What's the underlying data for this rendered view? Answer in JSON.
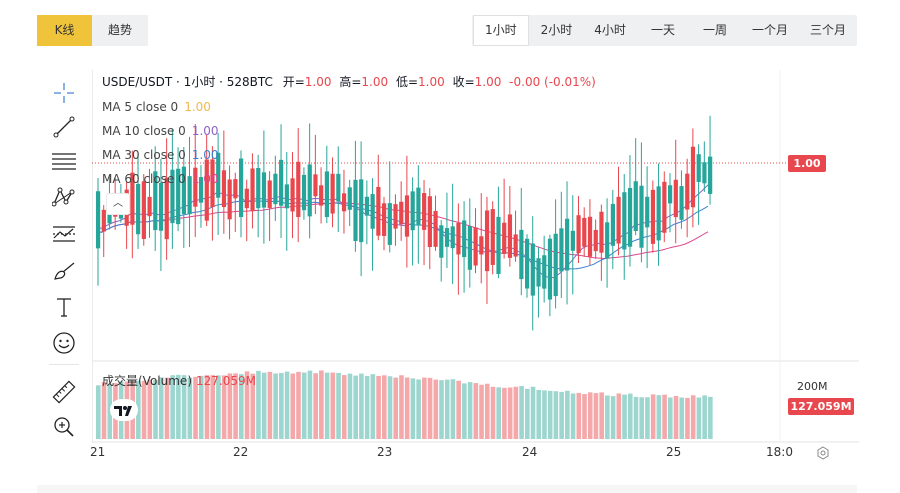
{
  "chart_tabs": {
    "kline": "K线",
    "trend": "趋势",
    "active": "kline"
  },
  "intervals": [
    "1小时",
    "2小时",
    "4小时",
    "一天",
    "一周",
    "一个月",
    "三个月"
  ],
  "active_interval": "1小时",
  "legend": {
    "symbol": "USDE/USDT · 1小时 · 528BTC",
    "open_label": "开=",
    "open": "1.00",
    "high_label": "高=",
    "high": "1.00",
    "low_label": "低=",
    "low": "1.00",
    "close_label": "收=",
    "close": "1.00",
    "change": "-0.00 (-0.01%)"
  },
  "ma_lines": [
    {
      "label": "MA 5 close 0",
      "value": "1.00",
      "color": "#f0b94d"
    },
    {
      "label": "MA 10 close 0",
      "value": "1.00",
      "color": "#8a63c9"
    },
    {
      "label": "MA 30 close 0",
      "value": "1.00",
      "color": "#3c7fcf"
    },
    {
      "label": "MA 60 close 0",
      "value": "1.00",
      "color": "#e0448b"
    }
  ],
  "volume": {
    "label": "成交量(Volume)",
    "value": "127.059M",
    "axis_label": "200M"
  },
  "price_tag": "1.00",
  "volume_tag": "127.059M",
  "x_ticks": [
    "21",
    "22",
    "23",
    "24",
    "25",
    "18:0"
  ],
  "colors": {
    "up": "#26a69a",
    "down": "#e8474d",
    "accent": "#f0c43a"
  },
  "chart_data": {
    "type": "candlestick",
    "title": "USDE/USDT · 1小时 · 528BTC",
    "x_categories": [
      "21",
      "22",
      "23",
      "24",
      "25",
      "18:0"
    ],
    "candles_count": 108,
    "last_price": 1.0,
    "last_change_pct": -0.01,
    "volume_axis": [
      "200M"
    ],
    "last_volume": "127.059M"
  }
}
